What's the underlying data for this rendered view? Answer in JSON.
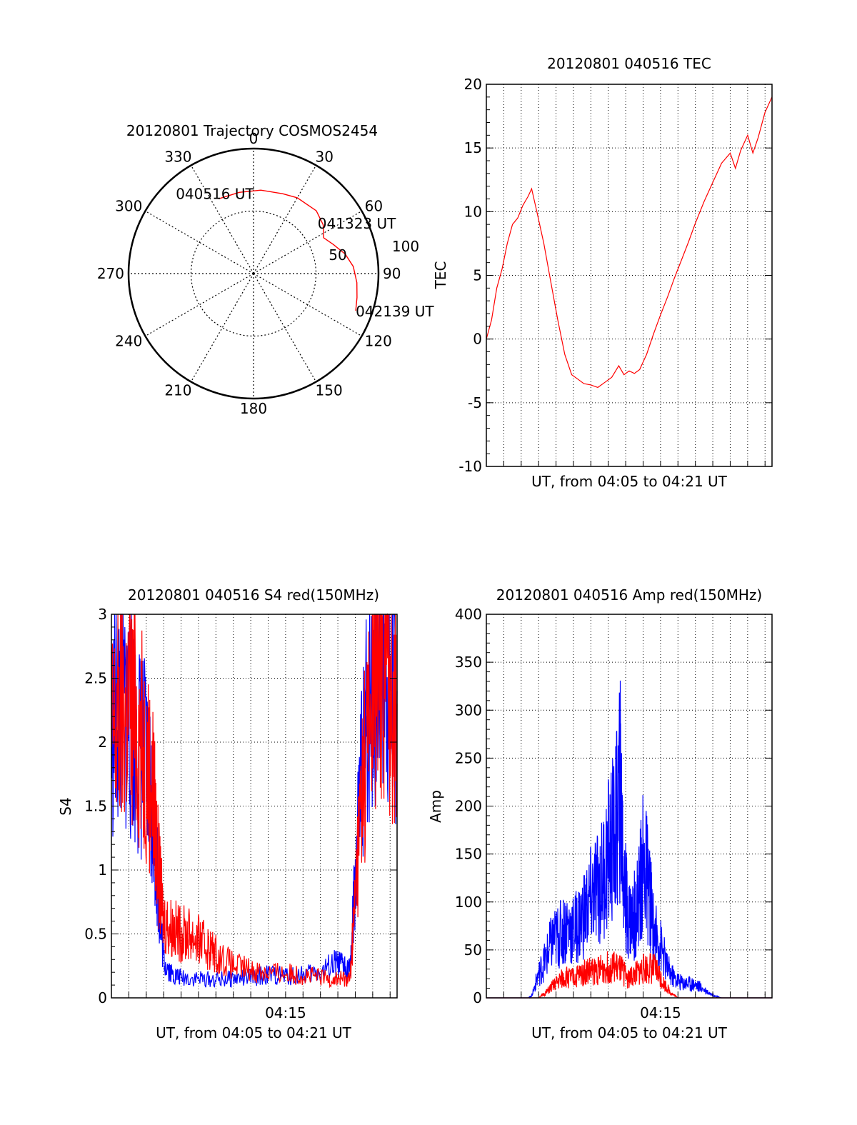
{
  "colors": {
    "red": "#ff0000",
    "blue": "#0000ff",
    "axis": "#000000",
    "grid": "#000000"
  },
  "chart_data": [
    {
      "id": "polar",
      "type": "scatter",
      "title": "20120801 Trajectory COSMOS2454",
      "projection": "polar",
      "azimuth_labels": [
        "0",
        "30",
        "60",
        "90",
        "120",
        "150",
        "180",
        "210",
        "240",
        "270",
        "300",
        "330"
      ],
      "radius_labels": [
        "50",
        "100"
      ],
      "rlim": [
        0,
        100
      ],
      "series": [
        {
          "color": "red",
          "points": [
            [
              335,
              66
            ],
            [
              350,
              66
            ],
            [
              5,
              67
            ],
            [
              20,
              68
            ],
            [
              30,
              70
            ],
            [
              45,
              71
            ],
            [
              55,
              68
            ],
            [
              63,
              63
            ],
            [
              70,
              68
            ],
            [
              78,
              75
            ],
            [
              86,
              80
            ],
            [
              95,
              83
            ],
            [
              103,
              85
            ],
            [
              110,
              87
            ]
          ]
        }
      ],
      "annotations": [
        {
          "text": "040516 UT",
          "azimuth": 335,
          "r": 66
        },
        {
          "text": "041323 UT",
          "azimuth": 57,
          "r": 68
        },
        {
          "text": "042139 UT",
          "azimuth": 110,
          "r": 87
        }
      ]
    },
    {
      "id": "tec",
      "type": "line",
      "title": "20120801 040516 TEC",
      "xlabel": "UT, from 04:05 to 04:21 UT",
      "ylabel": "TEC",
      "xlim": [
        0,
        16.4
      ],
      "ylim": [
        -10,
        20
      ],
      "yticks": [
        "-10",
        "-5",
        "0",
        "5",
        "10",
        "15",
        "20"
      ],
      "grid": true,
      "series": [
        {
          "color": "red",
          "x": [
            0,
            0.3,
            0.6,
            0.9,
            1.2,
            1.5,
            1.8,
            2.1,
            2.4,
            2.6,
            2.9,
            3.3,
            3.7,
            4.1,
            4.5,
            4.9,
            5.3,
            5.6,
            6.0,
            6.4,
            6.8,
            7.2,
            7.6,
            7.9,
            8.2,
            8.5,
            8.8,
            9.2,
            9.6,
            10.0,
            10.4,
            10.8,
            11.2,
            11.6,
            12.0,
            12.5,
            13.0,
            13.5,
            14.0,
            14.3,
            14.6,
            15.0,
            15.3,
            15.6,
            16.0,
            16.4
          ],
          "y": [
            0,
            1.5,
            4,
            5.5,
            7.5,
            9,
            9.5,
            10.5,
            11.2,
            11.8,
            10,
            7.5,
            4.5,
            1.5,
            -1.2,
            -2.8,
            -3.2,
            -3.5,
            -3.6,
            -3.8,
            -3.4,
            -3.0,
            -2.1,
            -2.8,
            -2.5,
            -2.7,
            -2.4,
            -1.2,
            0.4,
            1.9,
            3.3,
            4.8,
            6.2,
            7.6,
            9.1,
            10.8,
            12.3,
            13.8,
            14.6,
            13.4,
            14.8,
            16.0,
            14.6,
            15.8,
            17.8,
            19.0
          ]
        }
      ]
    },
    {
      "id": "s4",
      "type": "line",
      "title": "20120801 040516 S4 red(150MHz)",
      "xlabel": "UT, from 04:05 to 04:21 UT",
      "ylabel": "S4",
      "xlim": [
        0,
        16.4
      ],
      "ylim": [
        0,
        3
      ],
      "xticks": [
        {
          "x": 10,
          "label": "04:15"
        }
      ],
      "yticks": [
        "0",
        "0.5",
        "1",
        "1.5",
        "2",
        "2.5",
        "3"
      ],
      "grid": true,
      "series": [
        {
          "color": "blue",
          "x": [
            0,
            0.5,
            1.0,
            1.5,
            2.0,
            2.4,
            2.7,
            3.0,
            3.5,
            4.0,
            5.0,
            6.0,
            7.0,
            8.0,
            9.0,
            10.0,
            11.0,
            12.0,
            12.8,
            13.3,
            13.7,
            14.0,
            14.4,
            15.0,
            15.5,
            16.0,
            16.4
          ],
          "y": [
            2.1,
            2.3,
            2.2,
            2.0,
            1.8,
            1.5,
            0.8,
            0.3,
            0.18,
            0.16,
            0.15,
            0.14,
            0.15,
            0.16,
            0.18,
            0.17,
            0.18,
            0.2,
            0.26,
            0.25,
            0.22,
            0.9,
            1.8,
            2.5,
            2.8,
            2.6,
            2.4
          ]
        },
        {
          "color": "red",
          "x": [
            0,
            0.5,
            1.0,
            1.5,
            2.0,
            2.4,
            2.7,
            3.0,
            3.5,
            4.0,
            4.5,
            5.0,
            5.5,
            6.0,
            7.0,
            8.0,
            9.0,
            10.0,
            11.0,
            12.0,
            12.8,
            13.3,
            13.7,
            14.0,
            14.4,
            15.0,
            15.5,
            16.0,
            16.4
          ],
          "y": [
            2.0,
            2.2,
            2.3,
            2.1,
            1.9,
            1.6,
            1.0,
            0.6,
            0.55,
            0.5,
            0.5,
            0.45,
            0.4,
            0.35,
            0.25,
            0.22,
            0.2,
            0.19,
            0.18,
            0.16,
            0.15,
            0.15,
            0.15,
            0.8,
            1.7,
            2.4,
            2.7,
            2.5,
            2.3
          ]
        }
      ]
    },
    {
      "id": "amp",
      "type": "line",
      "title": "20120801 040516 Amp red(150MHz)",
      "xlabel": "UT, from 04:05 to 04:21 UT",
      "ylabel": "Amp",
      "xlim": [
        0,
        16.4
      ],
      "ylim": [
        0,
        400
      ],
      "xticks": [
        {
          "x": 10,
          "label": "04:15"
        }
      ],
      "yticks": [
        "0",
        "50",
        "100",
        "150",
        "200",
        "250",
        "300",
        "350",
        "400"
      ],
      "grid": true,
      "series": [
        {
          "color": "blue",
          "x": [
            0,
            2.4,
            2.6,
            3.0,
            3.4,
            3.8,
            4.2,
            4.6,
            5.0,
            5.4,
            5.8,
            6.2,
            6.6,
            7.0,
            7.4,
            7.7,
            7.9,
            8.1,
            8.4,
            8.7,
            9.0,
            9.3,
            9.6,
            10.0,
            10.4,
            10.8,
            11.2,
            11.6,
            12.0,
            12.4,
            13.0,
            13.5,
            14.0,
            16.4
          ],
          "y": [
            0,
            0,
            2,
            25,
            40,
            60,
            65,
            75,
            70,
            80,
            95,
            110,
            120,
            150,
            170,
            220,
            120,
            90,
            80,
            100,
            140,
            120,
            70,
            55,
            30,
            20,
            16,
            15,
            14,
            10,
            3,
            0,
            0,
            0
          ]
        },
        {
          "color": "red",
          "x": [
            0,
            3.0,
            3.4,
            3.8,
            4.2,
            4.6,
            5.0,
            5.4,
            5.8,
            6.2,
            6.6,
            7.0,
            7.4,
            7.8,
            8.2,
            8.6,
            9.0,
            9.4,
            9.8,
            10.2,
            10.6,
            11.0,
            16.4
          ],
          "y": [
            0,
            0,
            5,
            12,
            18,
            22,
            20,
            25,
            28,
            28,
            30,
            32,
            32,
            28,
            20,
            25,
            30,
            32,
            28,
            15,
            5,
            0,
            0
          ]
        }
      ]
    }
  ]
}
